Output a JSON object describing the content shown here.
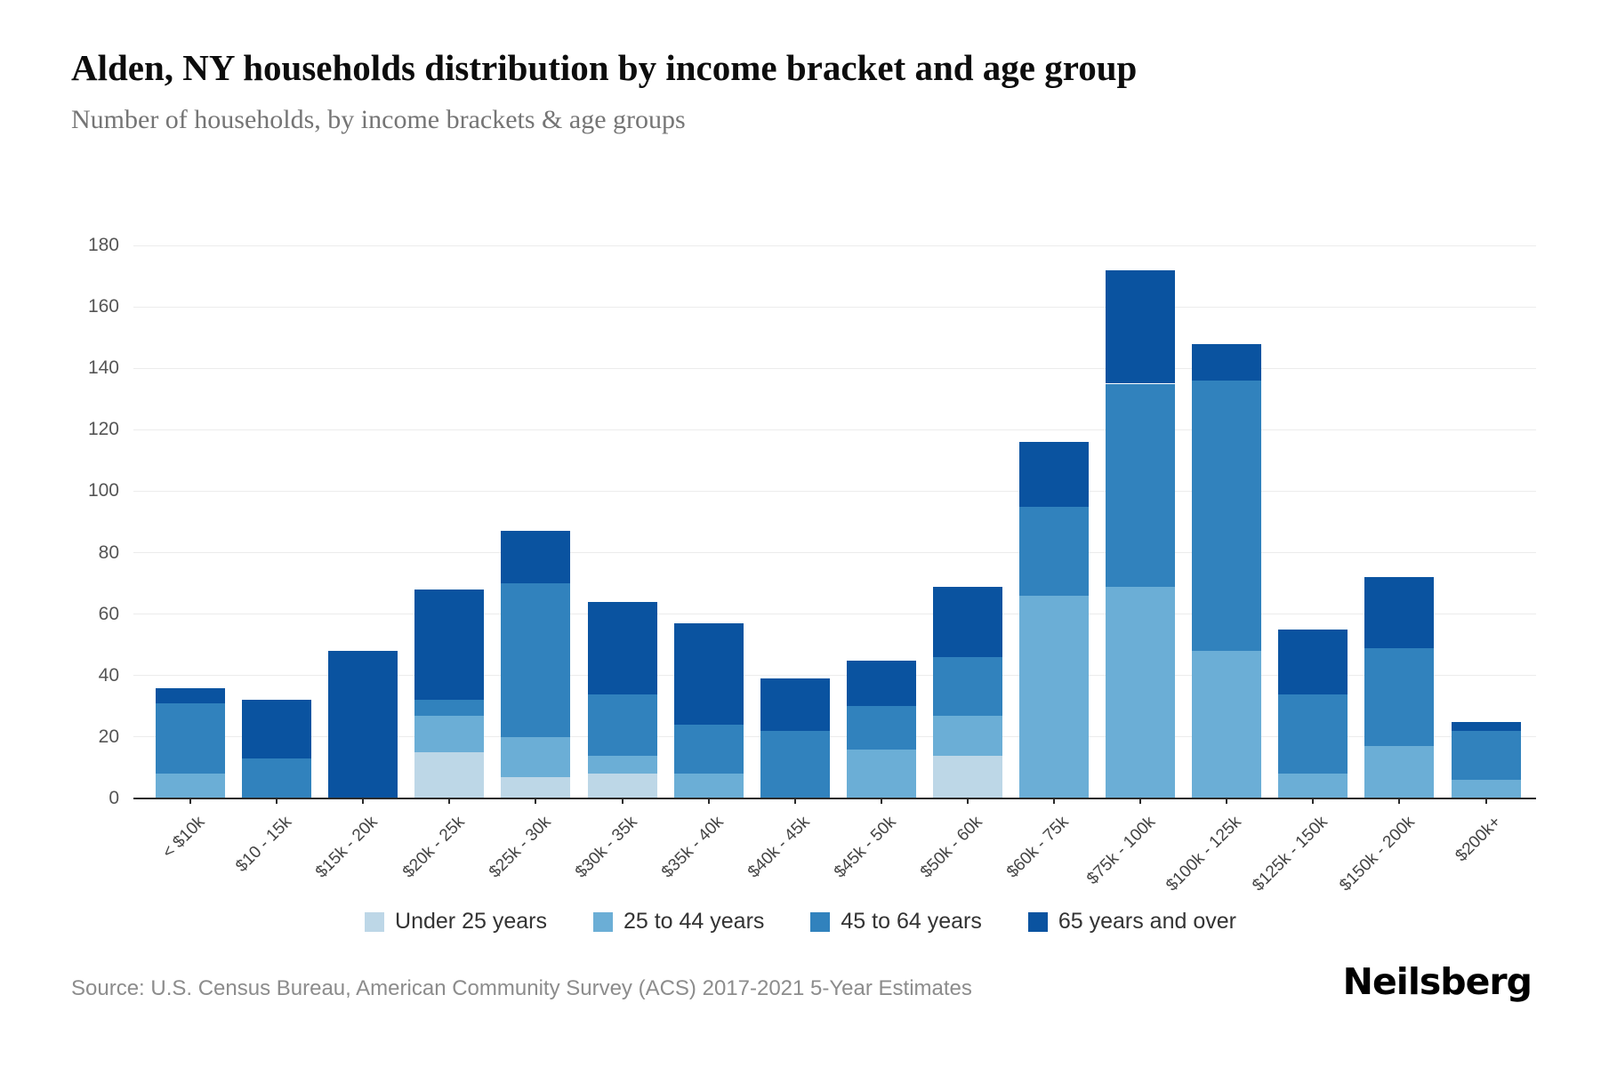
{
  "title": "Alden, NY households distribution by income bracket and age group",
  "subtitle": "Number of households, by income brackets & age groups",
  "source": "Source: U.S. Census Bureau, American Community Survey (ACS) 2017-2021 5-Year Estimates",
  "brand": "Neilsberg",
  "chart_data": {
    "type": "bar",
    "stacked": true,
    "title": "Alden, NY households distribution by income bracket and age group",
    "subtitle": "Number of households, by income brackets & age groups",
    "xlabel": "",
    "ylabel": "",
    "ylim": [
      0,
      180
    ],
    "yticks": [
      0,
      20,
      40,
      60,
      80,
      100,
      120,
      140,
      160,
      180
    ],
    "grid": true,
    "legend_position": "bottom",
    "categories": [
      "< $10k",
      "$10 - 15k",
      "$15k - 20k",
      "$20k - 25k",
      "$25k - 30k",
      "$30k - 35k",
      "$35k - 40k",
      "$40k - 45k",
      "$45k - 50k",
      "$50k - 60k",
      "$60k - 75k",
      "$75k - 100k",
      "$100k - 125k",
      "$125k - 150k",
      "$150k - 200k",
      "$200k+"
    ],
    "series": [
      {
        "name": "Under 25 years",
        "color": "#bdd7e7",
        "values": [
          0,
          0,
          0,
          15,
          7,
          8,
          0,
          0,
          0,
          14,
          0,
          0,
          0,
          0,
          0,
          0
        ]
      },
      {
        "name": "25 to 44 years",
        "color": "#6baed6",
        "values": [
          8,
          0,
          0,
          12,
          13,
          6,
          8,
          0,
          16,
          13,
          66,
          69,
          48,
          8,
          17,
          6
        ]
      },
      {
        "name": "45 to 64 years",
        "color": "#3182bd",
        "values": [
          23,
          13,
          0,
          5,
          50,
          20,
          16,
          22,
          14,
          19,
          29,
          66,
          88,
          26,
          32,
          16
        ]
      },
      {
        "name": "65 years and over",
        "color": "#0a53a0",
        "values": [
          5,
          19,
          48,
          36,
          17,
          30,
          33,
          17,
          15,
          23,
          21,
          37,
          12,
          21,
          23,
          3
        ]
      }
    ],
    "totals": [
      36,
      32,
      48,
      68,
      87,
      64,
      57,
      39,
      45,
      69,
      116,
      172,
      148,
      55,
      72,
      25
    ]
  }
}
